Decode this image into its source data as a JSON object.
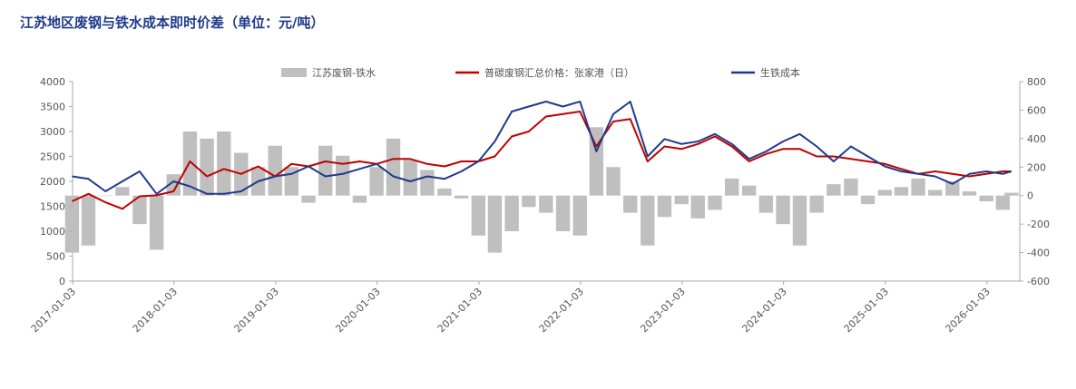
{
  "chart_data": {
    "type": "bar+line",
    "title": "江苏地区废钢与铁水成本即时价差（单位：元/吨）",
    "x_range": [
      "2017-01-03",
      "2026-05-01"
    ],
    "x_ticks": [
      "2017-01-03",
      "2018-01-03",
      "2019-01-03",
      "2020-01-03",
      "2021-01-03",
      "2022-01-03",
      "2023-01-03",
      "2024-01-03",
      "2025-01-03",
      "2026-01-03"
    ],
    "ylim_left": [
      0,
      4000
    ],
    "yticks_left": [
      "0",
      "500",
      "1000",
      "1500",
      "2000",
      "2500",
      "3000",
      "3500",
      "4000"
    ],
    "ylim_right": [
      -600,
      800
    ],
    "yticks_right": [
      "-600",
      "-400",
      "-200",
      "0",
      "200",
      "400",
      "600",
      "800"
    ],
    "legend_position": "top",
    "series": [
      {
        "name": "江苏废钢-铁水",
        "type": "bar",
        "axis": "right",
        "color": "#bfbfbf",
        "x": [
          "2017-01",
          "2017-03",
          "2017-05",
          "2017-07",
          "2017-09",
          "2017-11",
          "2018-01",
          "2018-03",
          "2018-05",
          "2018-07",
          "2018-09",
          "2018-11",
          "2019-01",
          "2019-03",
          "2019-05",
          "2019-07",
          "2019-09",
          "2019-11",
          "2020-01",
          "2020-03",
          "2020-05",
          "2020-07",
          "2020-09",
          "2020-11",
          "2021-01",
          "2021-03",
          "2021-05",
          "2021-07",
          "2021-09",
          "2021-11",
          "2022-01",
          "2022-03",
          "2022-05",
          "2022-07",
          "2022-09",
          "2022-11",
          "2023-01",
          "2023-03",
          "2023-05",
          "2023-07",
          "2023-09",
          "2023-11",
          "2024-01",
          "2024-03",
          "2024-05",
          "2024-07",
          "2024-09",
          "2024-11",
          "2025-01",
          "2025-03",
          "2025-05",
          "2025-07",
          "2025-09",
          "2025-11",
          "2026-01",
          "2026-03",
          "2026-04"
        ],
        "values": [
          -400,
          -350,
          0,
          60,
          -200,
          -380,
          150,
          450,
          400,
          450,
          300,
          200,
          350,
          200,
          -50,
          350,
          280,
          -50,
          200,
          400,
          250,
          180,
          50,
          -20,
          -280,
          -400,
          -250,
          -80,
          -120,
          -250,
          -280,
          480,
          200,
          -120,
          -350,
          -150,
          -60,
          -160,
          -100,
          120,
          70,
          -120,
          -200,
          -350,
          -120,
          80,
          120,
          -60,
          40,
          60,
          120,
          40,
          100,
          30,
          -40,
          -100,
          20
        ]
      },
      {
        "name": "普碳废钢汇总价格：张家港（日）",
        "type": "line",
        "axis": "left",
        "color": "#c00000",
        "x": [
          "2017-01",
          "2017-03",
          "2017-05",
          "2017-07",
          "2017-09",
          "2017-11",
          "2018-01",
          "2018-03",
          "2018-05",
          "2018-07",
          "2018-09",
          "2018-11",
          "2019-01",
          "2019-03",
          "2019-05",
          "2019-07",
          "2019-09",
          "2019-11",
          "2020-01",
          "2020-03",
          "2020-05",
          "2020-07",
          "2020-09",
          "2020-11",
          "2021-01",
          "2021-03",
          "2021-05",
          "2021-07",
          "2021-09",
          "2021-11",
          "2022-01",
          "2022-03",
          "2022-05",
          "2022-07",
          "2022-09",
          "2022-11",
          "2023-01",
          "2023-03",
          "2023-05",
          "2023-07",
          "2023-09",
          "2023-11",
          "2024-01",
          "2024-03",
          "2024-05",
          "2024-07",
          "2024-09",
          "2024-11",
          "2025-01",
          "2025-03",
          "2025-05",
          "2025-07",
          "2025-09",
          "2025-11",
          "2026-01",
          "2026-03",
          "2026-04"
        ],
        "values": [
          1600,
          1750,
          1580,
          1450,
          1700,
          1720,
          1800,
          2400,
          2100,
          2250,
          2150,
          2300,
          2100,
          2350,
          2300,
          2400,
          2350,
          2400,
          2350,
          2450,
          2450,
          2350,
          2300,
          2400,
          2400,
          2500,
          2900,
          3000,
          3300,
          3350,
          3400,
          2700,
          3200,
          3250,
          2400,
          2700,
          2650,
          2750,
          2900,
          2700,
          2400,
          2550,
          2650,
          2650,
          2500,
          2500,
          2450,
          2400,
          2350,
          2250,
          2150,
          2200,
          2150,
          2100,
          2150,
          2200,
          2200
        ]
      },
      {
        "name": "生铁成本",
        "type": "line",
        "axis": "left",
        "color": "#1f3a8a",
        "x": [
          "2017-01",
          "2017-03",
          "2017-05",
          "2017-07",
          "2017-09",
          "2017-11",
          "2018-01",
          "2018-03",
          "2018-05",
          "2018-07",
          "2018-09",
          "2018-11",
          "2019-01",
          "2019-03",
          "2019-05",
          "2019-07",
          "2019-09",
          "2019-11",
          "2020-01",
          "2020-03",
          "2020-05",
          "2020-07",
          "2020-09",
          "2020-11",
          "2021-01",
          "2021-03",
          "2021-05",
          "2021-07",
          "2021-09",
          "2021-11",
          "2022-01",
          "2022-03",
          "2022-05",
          "2022-07",
          "2022-09",
          "2022-11",
          "2023-01",
          "2023-03",
          "2023-05",
          "2023-07",
          "2023-09",
          "2023-11",
          "2024-01",
          "2024-03",
          "2024-05",
          "2024-07",
          "2024-09",
          "2024-11",
          "2025-01",
          "2025-03",
          "2025-05",
          "2025-07",
          "2025-09",
          "2025-11",
          "2026-01",
          "2026-03",
          "2026-04"
        ],
        "values": [
          2100,
          2050,
          1800,
          2000,
          2200,
          1750,
          2000,
          1900,
          1750,
          1750,
          1800,
          2000,
          2100,
          2150,
          2300,
          2100,
          2150,
          2250,
          2350,
          2100,
          2000,
          2100,
          2050,
          2200,
          2400,
          2800,
          3400,
          3500,
          3600,
          3500,
          3600,
          2600,
          3350,
          3600,
          2500,
          2850,
          2750,
          2800,
          2950,
          2750,
          2450,
          2600,
          2800,
          2950,
          2700,
          2400,
          2700,
          2500,
          2300,
          2200,
          2150,
          2100,
          1950,
          2150,
          2200,
          2150,
          2200
        ]
      }
    ]
  }
}
